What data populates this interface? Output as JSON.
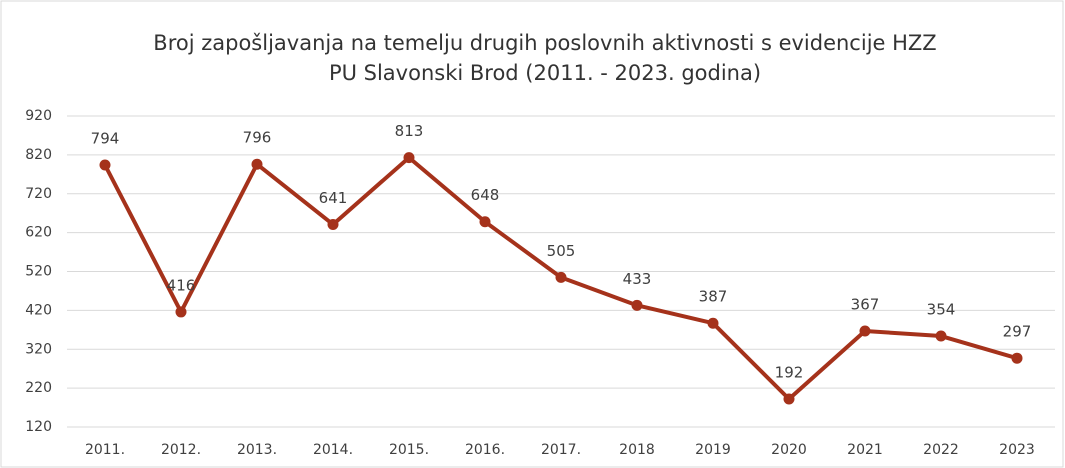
{
  "chart_data": {
    "type": "line",
    "title": [
      "Broj zapošljavanja na temelju drugih poslovnih aktivnosti s evidencije HZZ",
      "PU Slavonski Brod (2011. - 2023. godina)"
    ],
    "categories": [
      "2011.",
      "2012.",
      "2013.",
      "2014.",
      "2015.",
      "2016.",
      "2017.",
      "2018",
      "2019",
      "2020",
      "2021",
      "2022",
      "2023"
    ],
    "values": [
      794,
      416,
      796,
      641,
      813,
      648,
      505,
      433,
      387,
      192,
      367,
      354,
      297
    ],
    "color": "#a5321b",
    "ylim": [
      120,
      920
    ],
    "yticks": [
      120,
      220,
      320,
      420,
      520,
      620,
      720,
      820,
      920
    ],
    "grid": true
  }
}
